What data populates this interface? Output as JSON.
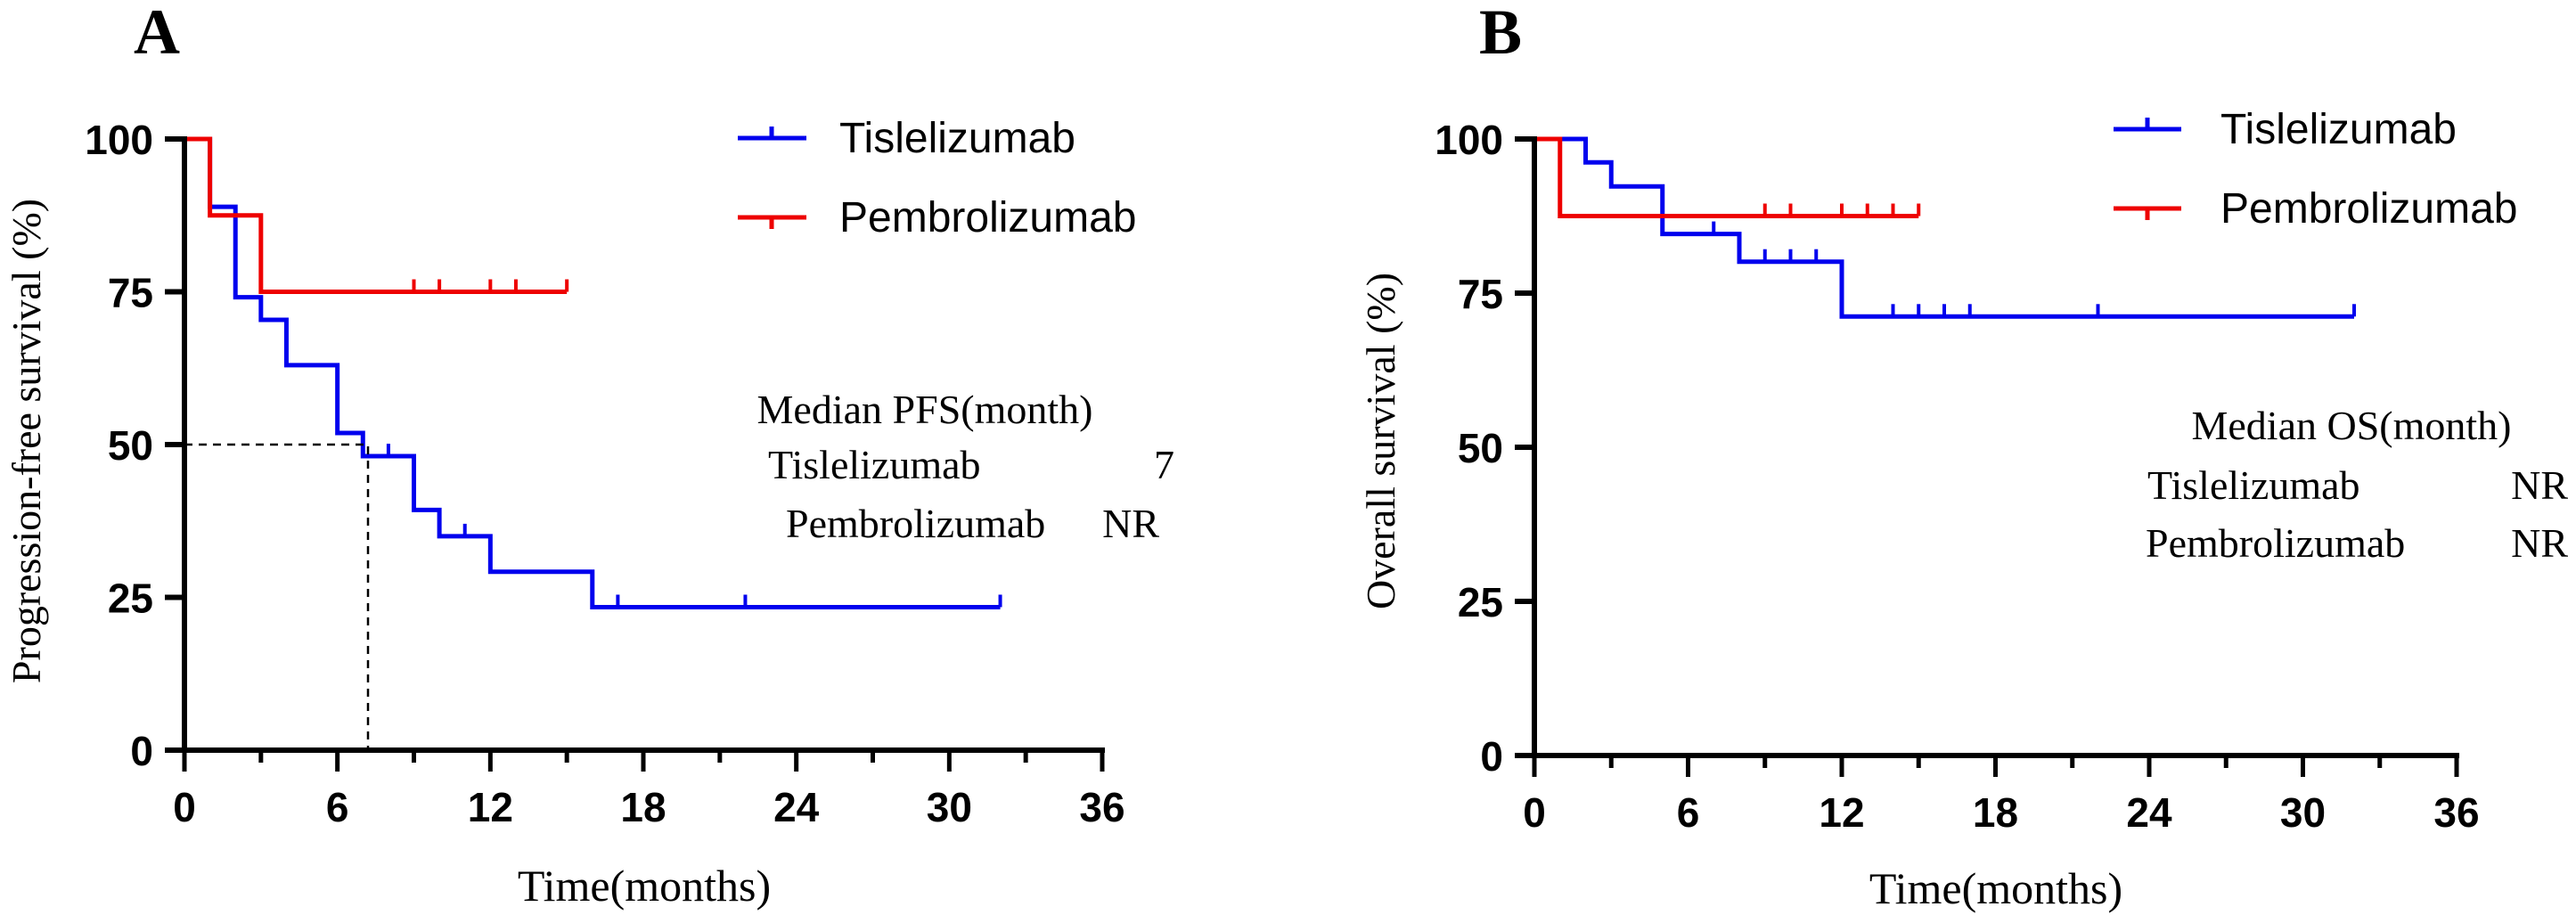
{
  "colors": {
    "tislelizumab": "#0000ee",
    "pembrolizumab": "#ee0000",
    "axis": "#000000"
  },
  "chart_data": [
    {
      "type": "line",
      "panel_label": "A",
      "title": "",
      "xlabel": "Time(months)",
      "ylabel": "Progression-free survival (%)",
      "xlim": [
        0,
        36
      ],
      "ylim": [
        0,
        100
      ],
      "xticks": [
        0,
        6,
        12,
        18,
        24,
        30,
        36
      ],
      "yticks": [
        0,
        25,
        50,
        75,
        100
      ],
      "legend": "top-right",
      "series": [
        {
          "name": "Tislelizumab",
          "color_key": "tislelizumab",
          "steps": [
            [
              0,
              100
            ],
            [
              1,
              88.9
            ],
            [
              2,
              74.1
            ],
            [
              3,
              70.4
            ],
            [
              4,
              63.0
            ],
            [
              6,
              51.9
            ],
            [
              7,
              48.1
            ],
            [
              9,
              39.3
            ],
            [
              10,
              35.0
            ],
            [
              12,
              29.2
            ],
            [
              16,
              23.4
            ],
            [
              32,
              23.4
            ]
          ],
          "censors": [
            [
              8,
              48.1
            ],
            [
              11,
              35.0
            ],
            [
              17,
              23.4
            ],
            [
              22,
              23.4
            ],
            [
              32,
              23.4
            ]
          ]
        },
        {
          "name": "Pembrolizumab",
          "color_key": "pembrolizumab",
          "steps": [
            [
              0,
              100
            ],
            [
              1,
              87.5
            ],
            [
              3,
              75
            ],
            [
              15,
              75
            ]
          ],
          "censors": [
            [
              9,
              75
            ],
            [
              10,
              75
            ],
            [
              12,
              75
            ],
            [
              13,
              75
            ],
            [
              15,
              75
            ]
          ]
        }
      ],
      "median_line": {
        "x": 7.2,
        "y": 50
      },
      "annotation": {
        "header": "Median PFS(month)",
        "rows": [
          {
            "name": "Tislelizumab",
            "value": "7"
          },
          {
            "name": "Pembrolizumab",
            "value": "NR"
          }
        ]
      }
    },
    {
      "type": "line",
      "panel_label": "B",
      "title": "",
      "xlabel": "Time(months)",
      "ylabel": "Overall survival (%)",
      "xlim": [
        0,
        36
      ],
      "ylim": [
        0,
        100
      ],
      "xticks": [
        0,
        6,
        12,
        18,
        24,
        30,
        36
      ],
      "yticks": [
        0,
        25,
        50,
        75,
        100
      ],
      "legend": "top-right",
      "series": [
        {
          "name": "Tislelizumab",
          "color_key": "tislelizumab",
          "steps": [
            [
              0,
              100
            ],
            [
              2,
              96.2
            ],
            [
              3,
              92.3
            ],
            [
              5,
              84.6
            ],
            [
              8,
              80.1
            ],
            [
              12,
              71.2
            ],
            [
              32,
              71.2
            ]
          ],
          "censors": [
            [
              7,
              84.6
            ],
            [
              9,
              80.1
            ],
            [
              10,
              80.1
            ],
            [
              11,
              80.1
            ],
            [
              14,
              71.2
            ],
            [
              15,
              71.2
            ],
            [
              16,
              71.2
            ],
            [
              17,
              71.2
            ],
            [
              22,
              71.2
            ],
            [
              32,
              71.2
            ]
          ]
        },
        {
          "name": "Pembrolizumab",
          "color_key": "pembrolizumab",
          "steps": [
            [
              0,
              100
            ],
            [
              1,
              87.5
            ],
            [
              15,
              87.5
            ]
          ],
          "censors": [
            [
              9,
              87.5
            ],
            [
              10,
              87.5
            ],
            [
              12,
              87.5
            ],
            [
              13,
              87.5
            ],
            [
              14,
              87.5
            ],
            [
              15,
              87.5
            ]
          ]
        }
      ],
      "annotation": {
        "header": "Median OS(month)",
        "rows": [
          {
            "name": "Tislelizumab",
            "value": "NR"
          },
          {
            "name": "Pembrolizumab",
            "value": "NR"
          }
        ]
      }
    }
  ]
}
